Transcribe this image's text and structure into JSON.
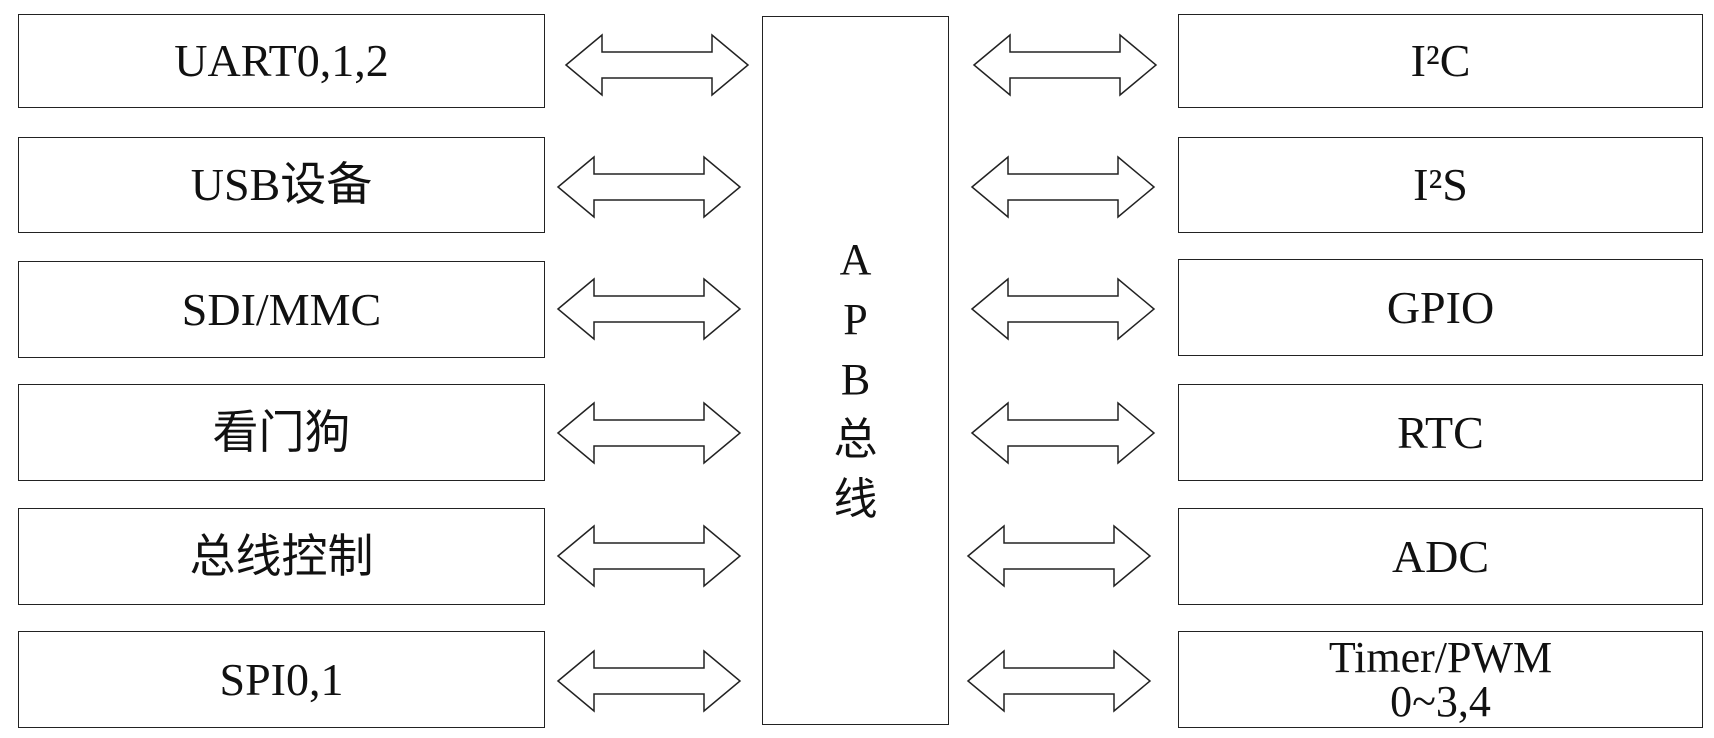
{
  "diagram": {
    "bus_label_chars": [
      "A",
      "P",
      "B",
      "总",
      "线"
    ],
    "left_modules": [
      {
        "label": "UART0,1,2"
      },
      {
        "label": "USB设备"
      },
      {
        "label": "SDI/MMC"
      },
      {
        "label": "看门狗"
      },
      {
        "label": "总线控制"
      },
      {
        "label": "SPI0,1"
      }
    ],
    "right_modules": [
      {
        "label": "I²C"
      },
      {
        "label": "I²S"
      },
      {
        "label": "GPIO"
      },
      {
        "label": "RTC"
      },
      {
        "label": "ADC"
      },
      {
        "label": "Timer/PWM",
        "label_line2": "0~3,4"
      }
    ],
    "connector": "double-arrow"
  }
}
